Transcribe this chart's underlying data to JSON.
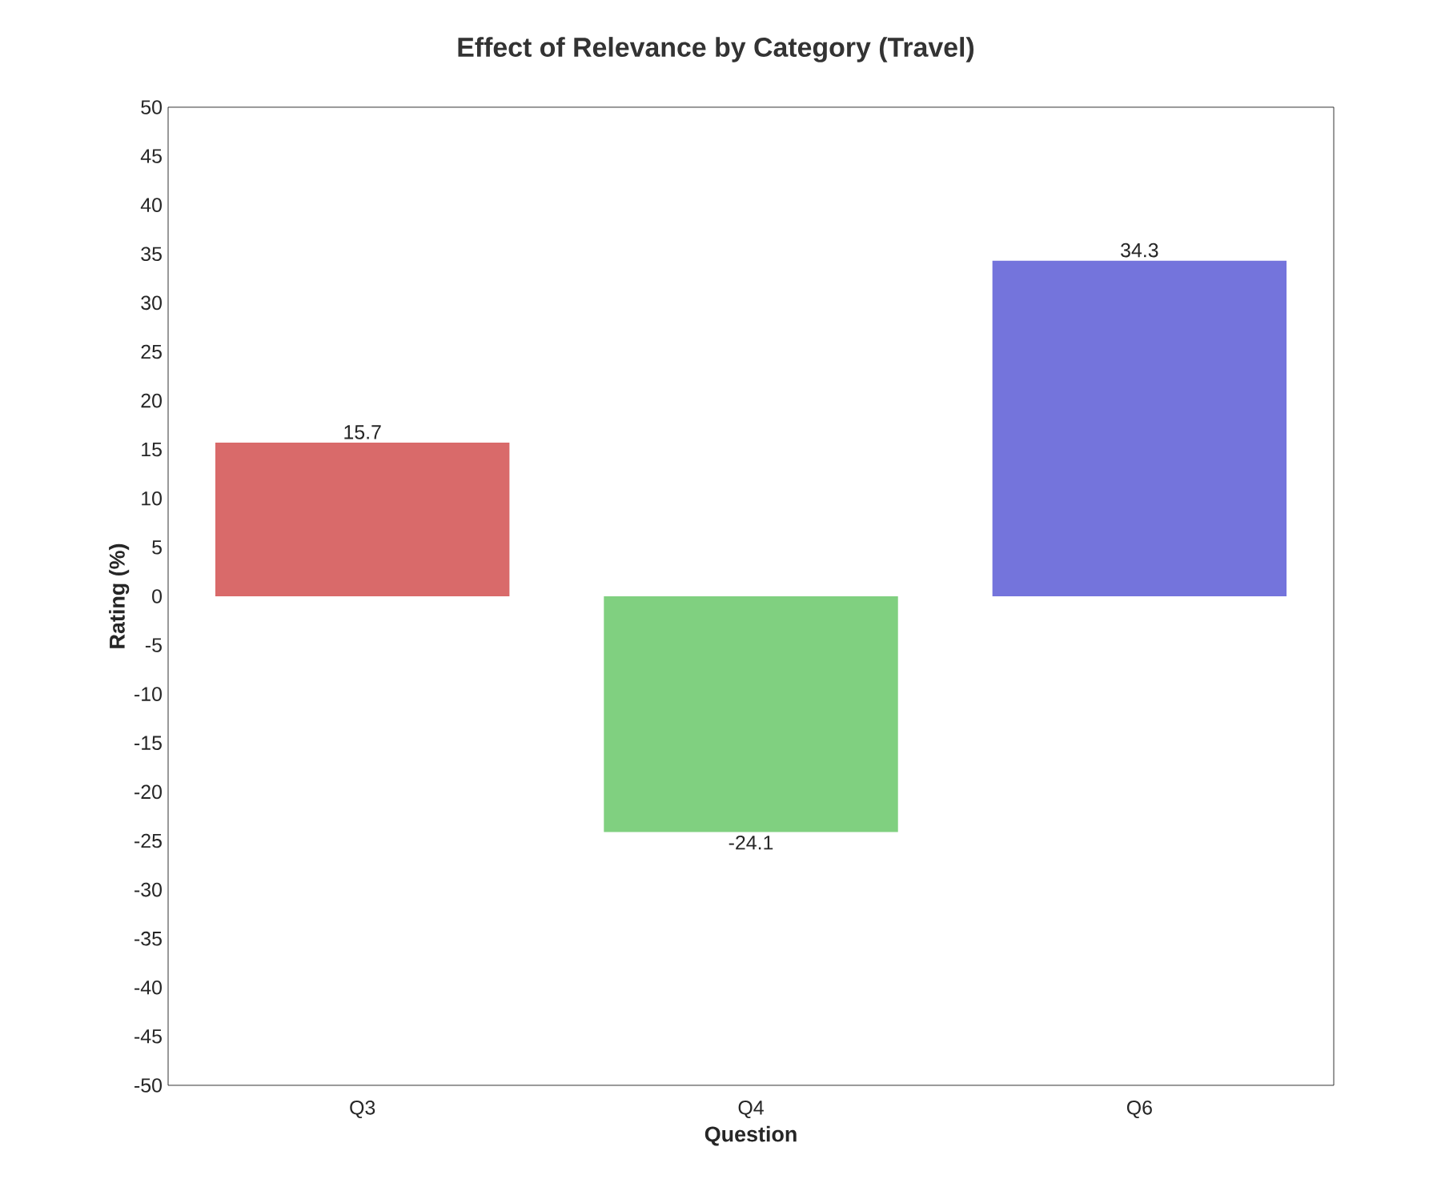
{
  "chart_data": {
    "type": "bar",
    "title": "Effect of Relevance by Category (Travel)",
    "xlabel": "Question",
    "ylabel": "Rating (%)",
    "categories": [
      "Q3",
      "Q4",
      "Q6"
    ],
    "values": [
      15.7,
      -24.1,
      34.3
    ],
    "colors": [
      "#d96a6a",
      "#80d080",
      "#7474dc"
    ],
    "data_labels": true,
    "ylim": [
      -50,
      50
    ],
    "yticks": [
      -50,
      -45,
      -40,
      -35,
      -30,
      -25,
      -20,
      -15,
      -10,
      -5,
      0,
      5,
      10,
      15,
      20,
      25,
      30,
      35,
      40,
      45,
      50
    ],
    "grid": false
  }
}
